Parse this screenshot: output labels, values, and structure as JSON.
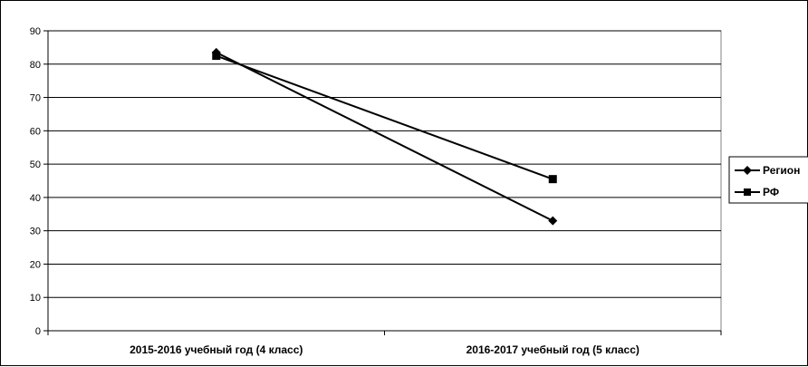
{
  "chart_data": {
    "type": "line",
    "categories": [
      "2015-2016 учебный год (4 класс)",
      "2016-2017 учебный год (5 класс)"
    ],
    "series": [
      {
        "name": "Регион",
        "values": [
          83.5,
          33
        ],
        "marker": "diamond",
        "color": "#000000"
      },
      {
        "name": "РФ",
        "values": [
          82.5,
          45.5
        ],
        "marker": "square",
        "color": "#000000"
      }
    ],
    "yticks": [
      "0",
      "10",
      "20",
      "30",
      "40",
      "50",
      "60",
      "70",
      "80",
      "90"
    ],
    "ylim": [
      0,
      90
    ],
    "grid": true,
    "legend": "right"
  }
}
